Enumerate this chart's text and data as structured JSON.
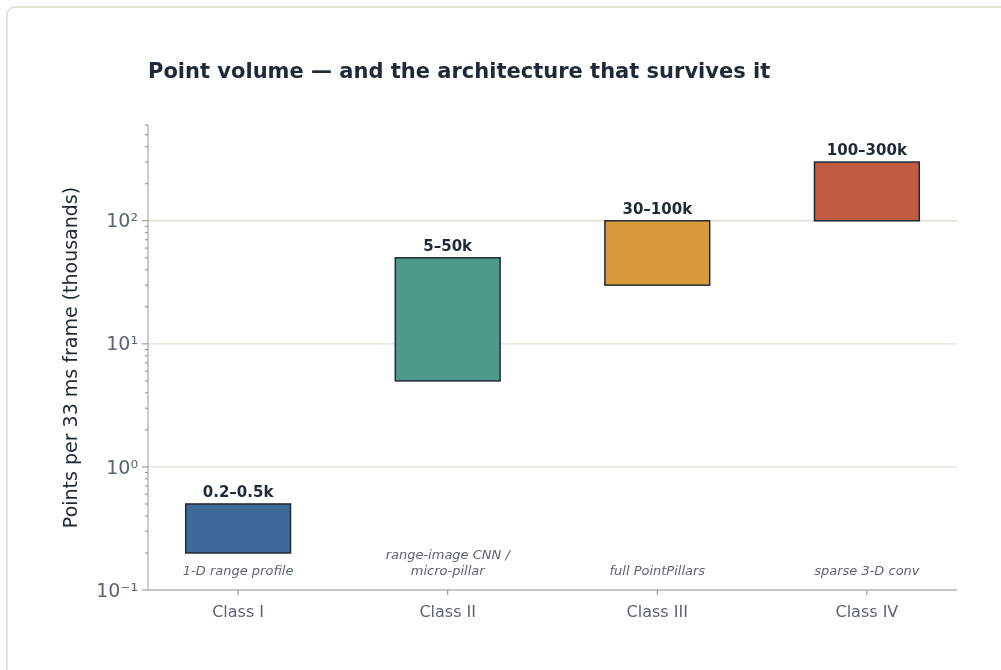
{
  "chart_data": {
    "type": "bar",
    "title": "Point volume — and the architecture that survives it",
    "ylabel": "Points per 33 ms frame  (thousands)",
    "categories": [
      "Class I",
      "Class II",
      "Class III",
      "Class IV"
    ],
    "base": [
      0.2,
      5,
      30,
      100
    ],
    "values": [
      0.3,
      45,
      70,
      200
    ],
    "colors": [
      "#3d6a99",
      "#4e9b8d",
      "#d99a3a",
      "#c05a40"
    ],
    "value_labels": [
      "0.2–0.5k",
      "5–50k",
      "30–100k",
      "100–300k"
    ],
    "log": true,
    "ylim": [
      0.1,
      600
    ],
    "yticks": [
      {
        "value": 0.1,
        "label": "10⁻¹"
      },
      {
        "value": 0.2,
        "label": null
      },
      {
        "value": 0.3,
        "label": null
      },
      {
        "value": 0.4,
        "label": null
      },
      {
        "value": 0.5,
        "label": null
      },
      {
        "value": 0.6,
        "label": null
      },
      {
        "value": 0.7,
        "label": null
      },
      {
        "value": 0.8,
        "label": null
      },
      {
        "value": 0.9,
        "label": null
      },
      {
        "value": 1,
        "label": "10⁰"
      },
      {
        "value": 2,
        "label": null
      },
      {
        "value": 3,
        "label": null
      },
      {
        "value": 4,
        "label": null
      },
      {
        "value": 5,
        "label": null
      },
      {
        "value": 6,
        "label": null
      },
      {
        "value": 7,
        "label": null
      },
      {
        "value": 8,
        "label": null
      },
      {
        "value": 9,
        "label": null
      },
      {
        "value": 10,
        "label": "10¹"
      },
      {
        "value": 20,
        "label": null
      },
      {
        "value": 30,
        "label": null
      },
      {
        "value": 40,
        "label": null
      },
      {
        "value": 50,
        "label": null
      },
      {
        "value": 60,
        "label": null
      },
      {
        "value": 70,
        "label": null
      },
      {
        "value": 80,
        "label": null
      },
      {
        "value": 90,
        "label": null
      },
      {
        "value": 100,
        "label": "10²"
      },
      {
        "value": 200,
        "label": null
      },
      {
        "value": 300,
        "label": null
      },
      {
        "value": 400,
        "label": null
      },
      {
        "value": 500,
        "label": null
      },
      {
        "value": 600,
        "label": null
      }
    ],
    "grid": "y",
    "annotations": [
      "1-D range profile",
      "range-image CNN /\nmicro-pillar",
      "full PointPillars",
      "sparse 3-D conv"
    ]
  }
}
